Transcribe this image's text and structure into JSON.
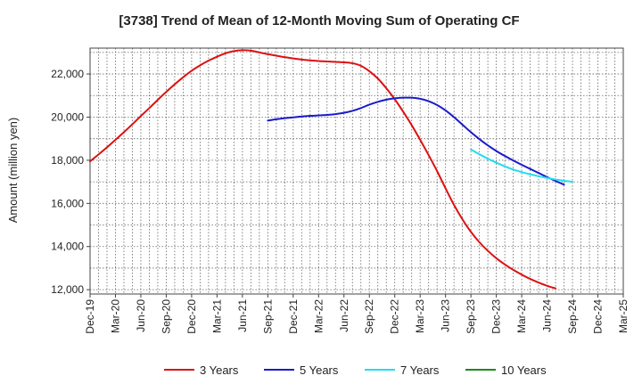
{
  "chart_data": {
    "type": "line",
    "title": "[3738]  Trend of Mean of 12-Month Moving Sum of Operating CF",
    "xlabel": "",
    "ylabel": "Amount (million yen)",
    "ylim": [
      11800,
      23200
    ],
    "yticks": [
      12000,
      14000,
      16000,
      18000,
      20000,
      22000
    ],
    "ytick_labels": [
      "12,000",
      "14,000",
      "16,000",
      "18,000",
      "20,000",
      "22,000"
    ],
    "grid": true,
    "legend_position": "bottom",
    "x_months": [
      "Dec-19",
      "Jan-20",
      "Feb-20",
      "Mar-20",
      "Apr-20",
      "May-20",
      "Jun-20",
      "Jul-20",
      "Aug-20",
      "Sep-20",
      "Oct-20",
      "Nov-20",
      "Dec-20",
      "Jan-21",
      "Feb-21",
      "Mar-21",
      "Apr-21",
      "May-21",
      "Jun-21",
      "Jul-21",
      "Aug-21",
      "Sep-21",
      "Oct-21",
      "Nov-21",
      "Dec-21",
      "Jan-22",
      "Feb-22",
      "Mar-22",
      "Apr-22",
      "May-22",
      "Jun-22",
      "Jul-22",
      "Aug-22",
      "Sep-22",
      "Oct-22",
      "Nov-22",
      "Dec-22",
      "Jan-23",
      "Feb-23",
      "Mar-23",
      "Apr-23",
      "May-23",
      "Jun-23",
      "Jul-23",
      "Aug-23",
      "Sep-23",
      "Oct-23",
      "Nov-23",
      "Dec-23",
      "Jan-24",
      "Feb-24",
      "Mar-24",
      "Apr-24",
      "May-24",
      "Jun-24",
      "Jul-24",
      "Aug-24",
      "Sep-24",
      "Oct-24",
      "Nov-24",
      "Dec-24",
      "Jan-25",
      "Feb-25",
      "Mar-25"
    ],
    "tick_labels": [
      "Dec-19",
      "Mar-20",
      "Jun-20",
      "Sep-20",
      "Dec-20",
      "Mar-21",
      "Jun-21",
      "Sep-21",
      "Dec-21",
      "Mar-22",
      "Jun-22",
      "Sep-22",
      "Dec-22",
      "Mar-23",
      "Jun-23",
      "Sep-23",
      "Dec-23",
      "Mar-24",
      "Jun-24",
      "Sep-24",
      "Dec-24",
      "Mar-25"
    ],
    "series": [
      {
        "name": "3 Years",
        "color": "#dd1111",
        "start_index": 0,
        "values": [
          17950,
          18270,
          18600,
          18950,
          19300,
          19670,
          20050,
          20420,
          20800,
          21170,
          21520,
          21850,
          22150,
          22400,
          22620,
          22800,
          22960,
          23060,
          23100,
          23080,
          23000,
          22920,
          22850,
          22780,
          22720,
          22670,
          22630,
          22600,
          22580,
          22560,
          22540,
          22500,
          22380,
          22130,
          21790,
          21340,
          20830,
          20250,
          19630,
          18950,
          18240,
          17500,
          16700,
          15930,
          15260,
          14680,
          14200,
          13800,
          13460,
          13170,
          12920,
          12700,
          12500,
          12330,
          12180,
          12060
        ]
      },
      {
        "name": "5 Years",
        "color": "#1a1acc",
        "start_index": 21,
        "values": [
          19840,
          19900,
          19950,
          19990,
          20030,
          20060,
          20080,
          20100,
          20140,
          20200,
          20290,
          20420,
          20580,
          20710,
          20810,
          20870,
          20900,
          20900,
          20850,
          20740,
          20560,
          20310,
          20000,
          19650,
          19300,
          18980,
          18690,
          18430,
          18200,
          17990,
          17790,
          17600,
          17410,
          17220,
          17040,
          16870
        ]
      },
      {
        "name": "7 Years",
        "color": "#22ddee",
        "start_index": 45,
        "values": [
          18500,
          18280,
          18070,
          17890,
          17720,
          17570,
          17450,
          17350,
          17260,
          17180,
          17110,
          17050,
          17000
        ]
      },
      {
        "name": "10 Years",
        "color": "#1a8a1a",
        "start_index": 0,
        "values": []
      }
    ]
  }
}
